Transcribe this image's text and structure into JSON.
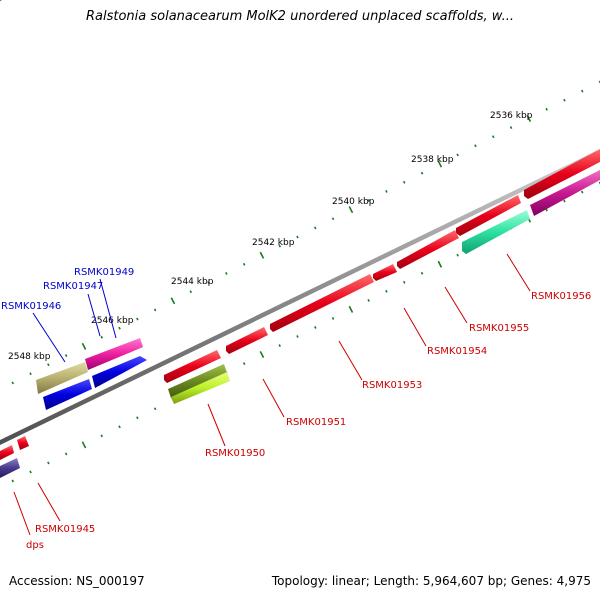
{
  "title": "Ralstonia solanacearum MolK2 unordered unplaced scaffolds, w...",
  "footer": {
    "accession": "Accession: NS_000197",
    "stats": "Topology: linear; Length: 5,964,607 bp; Genes: 4,975"
  },
  "colors": {
    "axis": "#8a8a8a",
    "ticks": "#1c7a1c",
    "red": "#e8001a",
    "blue_label": "#0000cc",
    "red_label": "#cc0000"
  },
  "kbp_labels": [
    "2536 kbp",
    "2538 kbp",
    "2540 kbp",
    "2542 kbp",
    "2544 kbp",
    "2546 kbp",
    "2548 kbp"
  ],
  "gene_labels_top": [
    "RSMK01949",
    "RSMK01947",
    "RSMK01946"
  ],
  "gene_labels_bottom": [
    "RSMK01956",
    "RSMK01955",
    "RSMK01954",
    "RSMK01953",
    "RSMK01951",
    "RSMK01950",
    "RSMK01945",
    "dps"
  ]
}
